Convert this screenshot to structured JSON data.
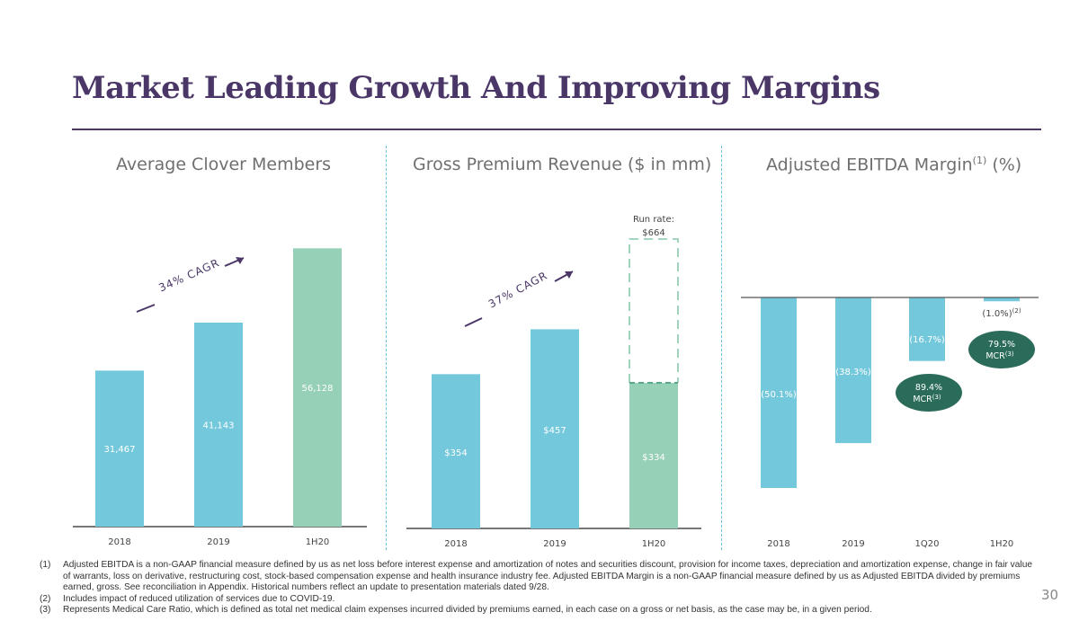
{
  "header": {
    "title": "Market Leading Growth And Improving Margins"
  },
  "colors": {
    "teal": "#74c8dc",
    "green": "#96d0b6",
    "purple": "#4a3768",
    "dark_green": "#2b6b5a"
  },
  "chart_data": [
    {
      "type": "bar",
      "title": "Average Clover Members",
      "categories": [
        "2018",
        "2019",
        "1H20"
      ],
      "values": [
        31467,
        41143,
        56128
      ],
      "labels": [
        "31,467",
        "41,143",
        "56,128"
      ],
      "bar_colors": [
        "#74c8dc",
        "#74c8dc",
        "#96d0b6"
      ],
      "ylim": [
        0,
        58000
      ],
      "annotation": "34% CAGR"
    },
    {
      "type": "bar",
      "title": "Gross Premium Revenue ($ in mm)",
      "categories": [
        "2018",
        "2019",
        "1H20"
      ],
      "values": [
        354,
        457,
        334
      ],
      "labels": [
        "$354",
        "$457",
        "$334"
      ],
      "bar_colors": [
        "#74c8dc",
        "#74c8dc",
        "#96d0b6"
      ],
      "run_rate": {
        "label": "Run rate:",
        "value": 664,
        "value_label": "$664"
      },
      "ylim": [
        0,
        664
      ],
      "annotation": "37% CAGR"
    },
    {
      "type": "bar",
      "title": "Adjusted EBITDA Margin",
      "title_sup": "(1)",
      "title_suffix": "(%)",
      "categories": [
        "2018",
        "2019",
        "1Q20",
        "1H20"
      ],
      "values": [
        -50.1,
        -38.3,
        -16.7,
        -1.0
      ],
      "labels": [
        "(50.1%)",
        "(38.3%)",
        "(16.7%)",
        "(1.0%)"
      ],
      "label_sups": [
        "",
        "",
        "",
        "(2)"
      ],
      "ylim": [
        -50.1,
        0
      ],
      "callouts": [
        {
          "category": "1Q20",
          "line1": "89.4%",
          "line2": "MCR",
          "sup": "(3)"
        },
        {
          "category": "1H20",
          "line1": "79.5%",
          "line2": "MCR",
          "sup": "(3)"
        }
      ]
    }
  ],
  "footnotes": [
    {
      "num": "(1)",
      "text": "Adjusted EBITDA is a non-GAAP financial measure defined by us as net loss before interest expense and amortization of notes and securities discount, provision for income taxes, depreciation and amortization expense, change in fair value of warrants, loss on derivative, restructuring cost, stock-based compensation expense and health insurance industry fee. Adjusted EBITDA Margin is a non-GAAP financial measure defined by us as Adjusted EBITDA divided by premiums earned, gross. See reconciliation in Appendix. Historical numbers reflect an update to presentation materials dated 9/28."
    },
    {
      "num": "(2)",
      "text": "Includes impact of reduced utilization of services due to COVID-19."
    },
    {
      "num": "(3)",
      "text": "Represents Medical Care Ratio, which is defined as total net medical claim expenses incurred divided by premiums earned, in each case on a gross or net basis, as the case may be, in a given period."
    }
  ],
  "page_number": "30"
}
